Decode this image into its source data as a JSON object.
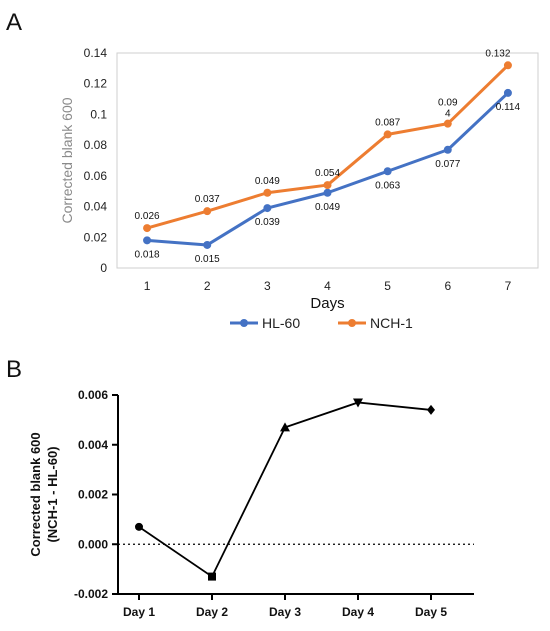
{
  "panels": {
    "a": "A",
    "b": "B"
  },
  "chart_data": [
    {
      "type": "line",
      "panel": "A",
      "title": "",
      "xlabel": "Days",
      "ylabel": "Corrected blank 600",
      "x": [
        1,
        2,
        3,
        4,
        5,
        6,
        7
      ],
      "ylim": [
        0,
        0.14
      ],
      "yticks": [
        "0",
        "0.02",
        "0.04",
        "0.06",
        "0.08",
        "0.1",
        "0.12",
        "0.14"
      ],
      "ytick_values": [
        0,
        0.02,
        0.04,
        0.06,
        0.08,
        0.1,
        0.12,
        0.14
      ],
      "grid": false,
      "legend": "bottom",
      "series": [
        {
          "name": "HL-60",
          "color": "#4472C4",
          "values": [
            0.018,
            0.015,
            0.039,
            0.049,
            0.063,
            0.077,
            0.114
          ],
          "labels": [
            "0.018",
            "0.015",
            "0.039",
            "0.049",
            "0.063",
            "0.077",
            "0.114"
          ]
        },
        {
          "name": "NCH-1",
          "color": "#ED7D31",
          "values": [
            0.026,
            0.037,
            0.049,
            0.054,
            0.087,
            0.094,
            0.132
          ],
          "labels": [
            "0.026",
            "0.037",
            "0.049",
            "0.054",
            "0.087",
            "0.09\n4",
            "0.132"
          ]
        }
      ]
    },
    {
      "type": "line",
      "panel": "B",
      "title": "",
      "xlabel": "",
      "ylabel": "Corrected blank 600",
      "ylabel2": "(NCH-1 - HL-60)",
      "categories": [
        "Day 1",
        "Day 2",
        "Day 3",
        "Day 4",
        "Day 5"
      ],
      "values": [
        0.0007,
        -0.0013,
        0.0047,
        0.0057,
        0.0054
      ],
      "markers": [
        "circle",
        "square",
        "triangle-up",
        "triangle-down",
        "diamond"
      ],
      "ylim": [
        -0.002,
        0.006
      ],
      "yticks": [
        "-0.002",
        "0.000",
        "0.002",
        "0.004",
        "0.006"
      ],
      "ytick_values": [
        -0.002,
        0,
        0.002,
        0.004,
        0.006
      ],
      "reference_line": 0,
      "grid": false,
      "color": "#000000"
    }
  ]
}
